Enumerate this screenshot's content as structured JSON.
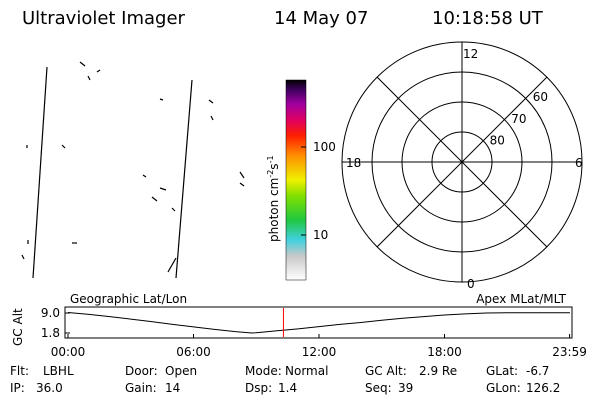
{
  "header": {
    "title": "Ultraviolet Imager",
    "date": "14 May 07",
    "time": "10:18:58 UT"
  },
  "colorbar": {
    "label": "photon cm",
    "exp1": "-2",
    "unit2": "s",
    "exp2": "-1",
    "ticks": [
      10,
      100
    ],
    "log": true
  },
  "polar": {
    "top": "12",
    "left": "18",
    "right": "6",
    "bottom": "0",
    "lat_labels": [
      60,
      70,
      80
    ]
  },
  "chart_data": {
    "type": "line",
    "left_label": "Geographic Lat/Lon",
    "right_label": "Apex MLat/MLT",
    "y_label": "GC Alt",
    "x": [
      0,
      1,
      2,
      3,
      4,
      5,
      6,
      7,
      8,
      8.8,
      9,
      10,
      11,
      12,
      13,
      14,
      15,
      16,
      17,
      18,
      19,
      20,
      21,
      22,
      23,
      24
    ],
    "series": [
      {
        "color": "#000000",
        "values": [
          9.2,
          8.5,
          7.7,
          6.8,
          5.9,
          4.9,
          4.0,
          3.1,
          2.3,
          1.8,
          1.9,
          2.6,
          3.3,
          4.1,
          4.9,
          5.6,
          6.4,
          7.1,
          7.7,
          8.3,
          8.7,
          9.0,
          9.1,
          9.1,
          9.1,
          9.1
        ]
      }
    ],
    "marker": {
      "x": 10.3,
      "color": "#ff0000"
    },
    "xlim": [
      0,
      24
    ],
    "ylim": [
      1.8,
      9.0
    ],
    "xticks": [
      {
        "value": 0,
        "label": "00:00"
      },
      {
        "value": 6,
        "label": "06:00"
      },
      {
        "value": 12,
        "label": "12:00"
      },
      {
        "value": 18,
        "label": "18:00"
      },
      {
        "value": 23.98,
        "label": "23:59"
      }
    ],
    "yticks": [
      {
        "value": 1.8,
        "label": "1.8"
      },
      {
        "value": 9.0,
        "label": "9.0"
      }
    ]
  },
  "status": [
    {
      "label": "Flt:",
      "value": "LBHL"
    },
    {
      "label": "IP:",
      "value": "36.0"
    },
    {
      "label": "Door:",
      "value": "Open"
    },
    {
      "label": "Gain:",
      "value": "14"
    },
    {
      "label": "Mode:",
      "value": "Normal"
    },
    {
      "label": "Dsp:",
      "value": "1.4"
    },
    {
      "label": "GC Alt:",
      "value": "2.9 Re"
    },
    {
      "label": "Seq:",
      "value": "39"
    },
    {
      "label": "GLat:",
      "value": "-6.7"
    },
    {
      "label": "GLon:",
      "value": "126.2"
    }
  ]
}
